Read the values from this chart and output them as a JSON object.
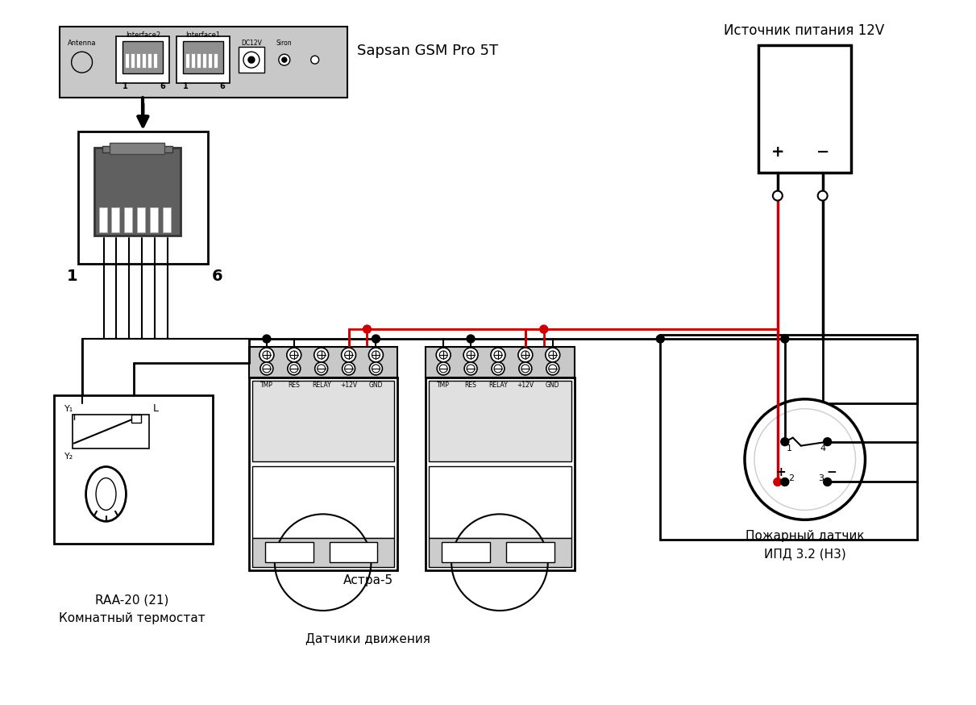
{
  "bg_color": "#ffffff",
  "wire_red": "#cc0000",
  "wire_black": "#000000",
  "gray_dark": "#606060",
  "gray_med": "#909090",
  "gray_light": "#cccccc",
  "gray_panel": "#c8c8c8",
  "gray_sensor": "#b0b0b0",
  "label_sapsan": "Sapsan GSM Pro 5T",
  "label_power": "Источник питания 12V",
  "label_raa1": "RAA-20 (21)",
  "label_raa2": "Комнатный термостат",
  "label_astra": "Астра-5",
  "label_sensors": "Датчики движения",
  "label_fire1": "Пожарный датчик",
  "label_fire2": "ИПД 3.2 (Н3)",
  "term_labels": [
    "TMP",
    "RES",
    "RELAY",
    "+12V",
    "GND"
  ]
}
